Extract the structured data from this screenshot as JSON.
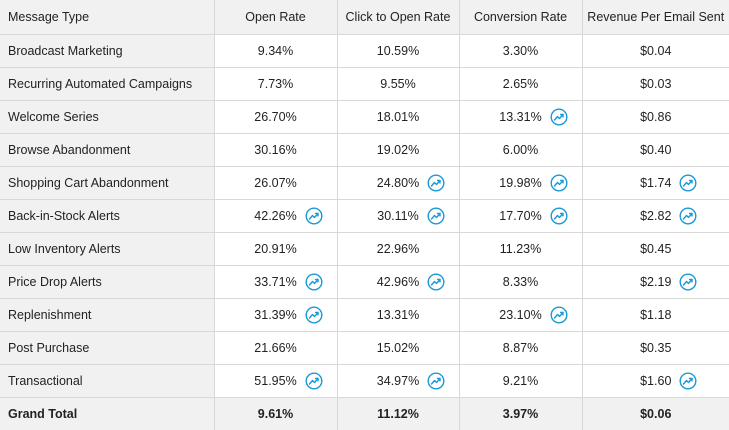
{
  "headers": [
    "Message Type",
    "Open Rate",
    "Click to Open Rate",
    "Conversion Rate",
    "Revenue Per Email Sent"
  ],
  "trend_icon": "trending-up-icon",
  "accent_color": "#1a9ad6",
  "rows": [
    {
      "label": "Broadcast Marketing",
      "cells": [
        {
          "v": "9.34%",
          "t": false
        },
        {
          "v": "10.59%",
          "t": false
        },
        {
          "v": "3.30%",
          "t": false
        },
        {
          "v": "$0.04",
          "t": false
        }
      ]
    },
    {
      "label": "Recurring Automated Campaigns",
      "cells": [
        {
          "v": "7.73%",
          "t": false
        },
        {
          "v": "9.55%",
          "t": false
        },
        {
          "v": "2.65%",
          "t": false
        },
        {
          "v": "$0.03",
          "t": false
        }
      ]
    },
    {
      "label": "Welcome Series",
      "cells": [
        {
          "v": "26.70%",
          "t": false
        },
        {
          "v": "18.01%",
          "t": false
        },
        {
          "v": "13.31%",
          "t": true
        },
        {
          "v": "$0.86",
          "t": false
        }
      ]
    },
    {
      "label": "Browse Abandonment",
      "cells": [
        {
          "v": "30.16%",
          "t": false
        },
        {
          "v": "19.02%",
          "t": false
        },
        {
          "v": "6.00%",
          "t": false
        },
        {
          "v": "$0.40",
          "t": false
        }
      ]
    },
    {
      "label": "Shopping Cart Abandonment",
      "cells": [
        {
          "v": "26.07%",
          "t": false
        },
        {
          "v": "24.80%",
          "t": true
        },
        {
          "v": "19.98%",
          "t": true
        },
        {
          "v": "$1.74",
          "t": true
        }
      ]
    },
    {
      "label": "Back-in-Stock Alerts",
      "cells": [
        {
          "v": "42.26%",
          "t": true
        },
        {
          "v": "30.11%",
          "t": true
        },
        {
          "v": "17.70%",
          "t": true
        },
        {
          "v": "$2.82",
          "t": true
        }
      ]
    },
    {
      "label": "Low Inventory Alerts",
      "cells": [
        {
          "v": "20.91%",
          "t": false
        },
        {
          "v": "22.96%",
          "t": false
        },
        {
          "v": "11.23%",
          "t": false
        },
        {
          "v": "$0.45",
          "t": false
        }
      ]
    },
    {
      "label": "Price Drop Alerts",
      "cells": [
        {
          "v": "33.71%",
          "t": true
        },
        {
          "v": "42.96%",
          "t": true
        },
        {
          "v": "8.33%",
          "t": false
        },
        {
          "v": "$2.19",
          "t": true
        }
      ]
    },
    {
      "label": "Replenishment",
      "cells": [
        {
          "v": "31.39%",
          "t": true
        },
        {
          "v": "13.31%",
          "t": false
        },
        {
          "v": "23.10%",
          "t": true
        },
        {
          "v": "$1.18",
          "t": false
        }
      ]
    },
    {
      "label": "Post Purchase",
      "cells": [
        {
          "v": "21.66%",
          "t": false
        },
        {
          "v": "15.02%",
          "t": false
        },
        {
          "v": "8.87%",
          "t": false
        },
        {
          "v": "$0.35",
          "t": false
        }
      ]
    },
    {
      "label": "Transactional",
      "cells": [
        {
          "v": "51.95%",
          "t": true
        },
        {
          "v": "34.97%",
          "t": true
        },
        {
          "v": "9.21%",
          "t": false
        },
        {
          "v": "$1.60",
          "t": true
        }
      ]
    }
  ],
  "total": {
    "label": "Grand Total",
    "cells": [
      "9.61%",
      "11.12%",
      "3.97%",
      "$0.06"
    ]
  }
}
